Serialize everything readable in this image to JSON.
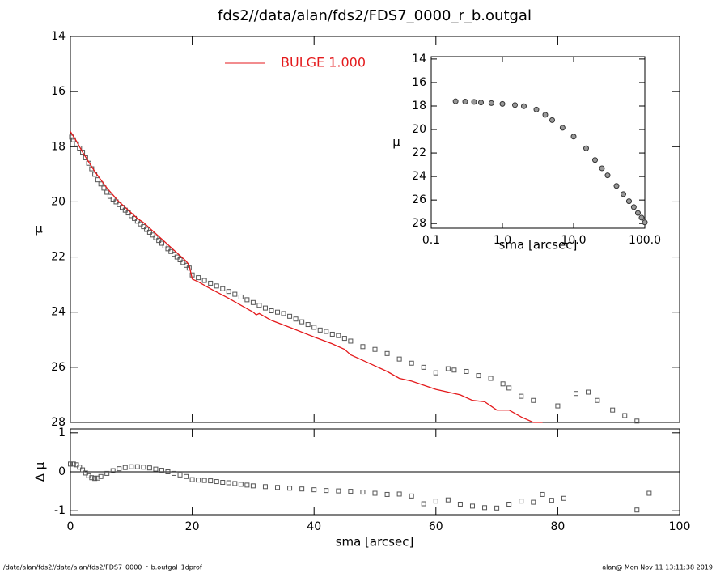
{
  "chart_data": [
    {
      "type": "line",
      "title": "fds2//data/alan/fds2/FDS7_0000_r_b.outgal",
      "ylabel": "μ",
      "xlim": [
        0,
        100
      ],
      "xticks": [
        0,
        20,
        40,
        60,
        80,
        100
      ],
      "xtick_labels": false,
      "ylim": [
        14,
        28
      ],
      "y_inverted": true,
      "yticks": [
        14,
        16,
        18,
        20,
        22,
        24,
        26,
        28
      ],
      "series": [
        {
          "kind": "scatter",
          "marker": "square",
          "color": "#555555",
          "x": [
            0.2,
            0.5,
            1,
            1.5,
            2,
            2.5,
            3,
            3.5,
            4,
            4.5,
            5,
            5.5,
            6,
            6.5,
            7,
            7.5,
            8,
            8.5,
            9,
            9.5,
            10,
            10.5,
            11,
            11.5,
            12,
            12.5,
            13,
            13.5,
            14,
            14.5,
            15,
            15.5,
            16,
            16.5,
            17,
            17.5,
            18,
            18.5,
            19,
            19.5,
            20,
            21,
            22,
            23,
            24,
            25,
            26,
            27,
            28,
            29,
            30,
            31,
            32,
            33,
            34,
            35,
            36,
            37,
            38,
            39,
            40,
            41,
            42,
            43,
            44,
            45,
            46,
            48,
            50,
            52,
            54,
            56,
            58,
            60,
            62,
            63,
            65,
            67,
            69,
            71,
            72,
            74,
            76,
            80,
            83,
            85,
            86.5,
            89,
            91,
            93
          ],
          "values": [
            17.65,
            17.75,
            17.9,
            18.05,
            18.2,
            18.4,
            18.6,
            18.8,
            19.0,
            19.2,
            19.35,
            19.5,
            19.65,
            19.8,
            19.9,
            20.0,
            20.1,
            20.2,
            20.3,
            20.4,
            20.5,
            20.6,
            20.7,
            20.8,
            20.9,
            21.0,
            21.1,
            21.2,
            21.3,
            21.4,
            21.5,
            21.6,
            21.7,
            21.8,
            21.9,
            22.0,
            22.1,
            22.2,
            22.3,
            22.4,
            22.65,
            22.75,
            22.85,
            22.95,
            23.05,
            23.15,
            23.25,
            23.35,
            23.45,
            23.55,
            23.65,
            23.75,
            23.85,
            23.95,
            24.0,
            24.05,
            24.15,
            24.25,
            24.35,
            24.45,
            24.55,
            24.65,
            24.7,
            24.8,
            24.85,
            24.95,
            25.05,
            25.25,
            25.35,
            25.5,
            25.7,
            25.85,
            26.0,
            26.2,
            26.05,
            26.1,
            26.15,
            26.3,
            26.4,
            26.6,
            26.75,
            27.05,
            27.2,
            27.4,
            26.95,
            26.9,
            27.2,
            27.55,
            27.75,
            27.95
          ]
        },
        {
          "kind": "line",
          "name": "BULGE  1.000",
          "color": "#e41a1c",
          "x": [
            0,
            1,
            2,
            3,
            4,
            5,
            6,
            7,
            8,
            9,
            10,
            11,
            12,
            13,
            14,
            15,
            16,
            17,
            18,
            19,
            19.5,
            20,
            21,
            23,
            26,
            28,
            30,
            30.5,
            31,
            33,
            36,
            40,
            43,
            45,
            46,
            49,
            52,
            54,
            56,
            60,
            64,
            66,
            68,
            70,
            72,
            74,
            76,
            77.5
          ],
          "values": [
            17.45,
            17.8,
            18.2,
            18.55,
            18.9,
            19.2,
            19.5,
            19.75,
            20.0,
            20.2,
            20.4,
            20.6,
            20.75,
            20.95,
            21.15,
            21.35,
            21.55,
            21.75,
            21.95,
            22.15,
            22.3,
            22.8,
            22.9,
            23.15,
            23.5,
            23.75,
            24.0,
            24.1,
            24.05,
            24.3,
            24.55,
            24.9,
            25.15,
            25.35,
            25.55,
            25.85,
            26.15,
            26.4,
            26.5,
            26.8,
            27.0,
            27.2,
            27.25,
            27.55,
            27.55,
            27.8,
            28.0,
            28.0
          ]
        }
      ]
    },
    {
      "type": "scatter",
      "xlabel": "sma [arcsec]",
      "ylabel": "Δ μ",
      "zero_line": true,
      "xlim": [
        0,
        100
      ],
      "xticks": [
        0,
        20,
        40,
        60,
        80,
        100
      ],
      "ylim": [
        -1.1,
        1.1
      ],
      "yticks": [
        -1,
        0,
        1
      ],
      "series": [
        {
          "kind": "scatter",
          "marker": "square",
          "color": "#555555",
          "x": [
            0,
            0.5,
            1,
            1.5,
            2,
            2.5,
            3,
            3.5,
            4,
            4.5,
            5,
            6,
            7,
            8,
            9,
            10,
            11,
            12,
            13,
            14,
            15,
            16,
            17,
            18,
            19,
            20,
            21,
            22,
            23,
            24,
            25,
            26,
            27,
            28,
            29,
            30,
            32,
            34,
            36,
            38,
            40,
            42,
            44,
            46,
            48,
            50,
            52,
            54,
            56,
            58,
            60,
            62,
            64,
            66,
            68,
            70,
            72,
            74,
            76,
            77.5,
            79,
            81,
            93,
            95
          ],
          "values": [
            0.2,
            0.2,
            0.18,
            0.12,
            0.05,
            -0.03,
            -0.1,
            -0.15,
            -0.17,
            -0.16,
            -0.12,
            -0.04,
            0.03,
            0.08,
            0.11,
            0.13,
            0.13,
            0.12,
            0.1,
            0.07,
            0.04,
            0,
            -0.04,
            -0.08,
            -0.12,
            -0.2,
            -0.21,
            -0.22,
            -0.23,
            -0.25,
            -0.27,
            -0.28,
            -0.3,
            -0.32,
            -0.34,
            -0.36,
            -0.38,
            -0.4,
            -0.42,
            -0.44,
            -0.46,
            -0.48,
            -0.49,
            -0.5,
            -0.52,
            -0.55,
            -0.58,
            -0.57,
            -0.62,
            -0.82,
            -0.75,
            -0.72,
            -0.83,
            -0.88,
            -0.92,
            -0.93,
            -0.83,
            -0.75,
            -0.78,
            -0.58,
            -0.73,
            -0.68,
            -0.98,
            -0.55
          ]
        }
      ]
    },
    {
      "type": "scatter",
      "xlabel": "sma [arcsec]",
      "ylabel": "μ",
      "xlog": true,
      "xlim": [
        0.1,
        100
      ],
      "xticks": [
        0.1,
        {
          "value": 1,
          "label": "1.0"
        },
        {
          "value": 10,
          "label": "10.0"
        },
        {
          "value": 100,
          "label": "100.0"
        }
      ],
      "ylim": [
        13.8,
        28.4
      ],
      "y_inverted": true,
      "yticks": [
        14,
        16,
        18,
        20,
        22,
        24,
        26,
        28
      ],
      "series": [
        {
          "kind": "scatter",
          "marker": "circle",
          "color": "#333333",
          "x": [
            0.22,
            0.3,
            0.4,
            0.5,
            0.7,
            1,
            1.5,
            2,
            3,
            4,
            5,
            7,
            10,
            15,
            20,
            25,
            30,
            40,
            50,
            60,
            70,
            80,
            90,
            100
          ],
          "values": [
            17.6,
            17.62,
            17.65,
            17.7,
            17.75,
            17.82,
            17.92,
            18.02,
            18.3,
            18.75,
            19.2,
            19.85,
            20.6,
            21.6,
            22.6,
            23.3,
            23.9,
            24.8,
            25.5,
            26.1,
            26.6,
            27.1,
            27.5,
            27.9
          ]
        }
      ]
    }
  ],
  "footer": {
    "left": "/data/alan/fds2//data/alan/fds2/FDS7_0000_r_b.outgal_1dprof",
    "right": "alan@  Mon Nov 11 13:11:38 2019"
  }
}
